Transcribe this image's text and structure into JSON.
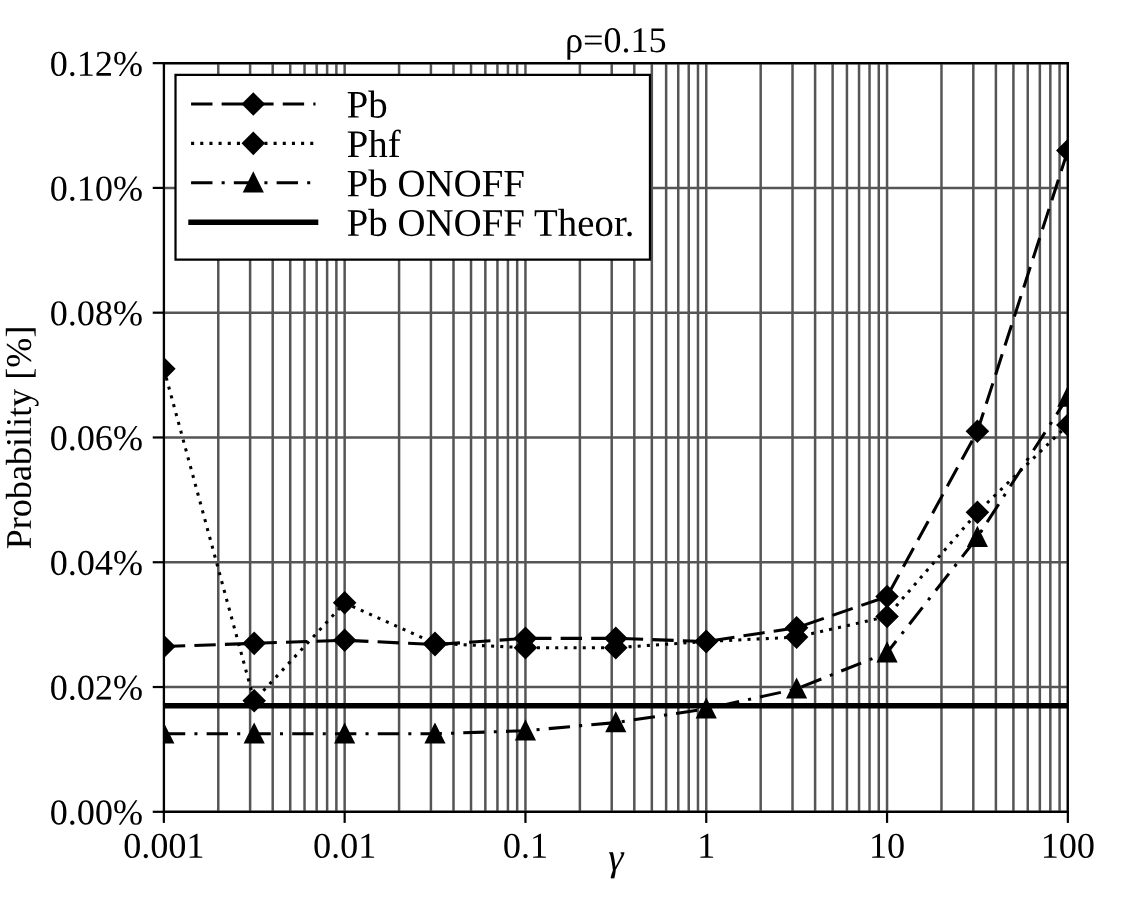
{
  "chart_data": {
    "type": "line",
    "title": "ρ=0.15",
    "xlabel": "γ",
    "ylabel": "Probability [%]",
    "x": [
      0.001,
      0.00316,
      0.01,
      0.0316,
      0.1,
      0.316,
      1,
      3.16,
      10,
      31.6,
      100
    ],
    "series": [
      {
        "name": "Pb",
        "color": "#000000",
        "marker": "diamond",
        "line_style": "dashed",
        "values": [
          0.0265,
          0.027,
          0.0275,
          0.0268,
          0.0278,
          0.0278,
          0.0273,
          0.0295,
          0.0345,
          0.061,
          0.106
        ]
      },
      {
        "name": "Phf",
        "color": "#000000",
        "marker": "diamond",
        "line_style": "dotted",
        "values": [
          0.071,
          0.0178,
          0.0335,
          0.027,
          0.0263,
          0.0263,
          0.0273,
          0.028,
          0.0313,
          0.048,
          0.062
        ]
      },
      {
        "name": "Pb ONOFF",
        "color": "#000000",
        "marker": "triangle",
        "line_style": "dashdot",
        "values": [
          0.0125,
          0.0125,
          0.0125,
          0.0125,
          0.013,
          0.0143,
          0.0165,
          0.0197,
          0.0255,
          0.044,
          0.0665
        ]
      },
      {
        "name": "Pb ONOFF Theor.",
        "color": "#000000",
        "marker": "none",
        "line_style": "solid",
        "x": [
          0.001,
          100
        ],
        "values": [
          0.017,
          0.017
        ]
      }
    ],
    "log": "x",
    "xlim": [
      0.001,
      100
    ],
    "ylim": [
      0,
      0.12
    ],
    "xticks": [
      {
        "value": 0.001,
        "label": "0.001"
      },
      {
        "value": 0.01,
        "label": "0.01"
      },
      {
        "value": 0.1,
        "label": "0.1"
      },
      {
        "value": 1,
        "label": "1"
      },
      {
        "value": 10,
        "label": "10"
      },
      {
        "value": 100,
        "label": "100"
      }
    ],
    "yticks": [
      {
        "value": 0,
        "label": "0.00%"
      },
      {
        "value": 0.02,
        "label": "0.02%"
      },
      {
        "value": 0.04,
        "label": "0.04%"
      },
      {
        "value": 0.06,
        "label": "0.06%"
      },
      {
        "value": 0.08,
        "label": "0.08%"
      },
      {
        "value": 0.1,
        "label": "0.10%"
      },
      {
        "value": 0.12,
        "label": "0.12%"
      }
    ],
    "grid": true,
    "legend": "top left"
  }
}
